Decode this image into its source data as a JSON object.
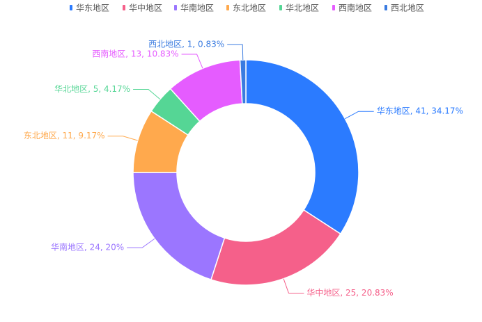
{
  "chart_data": {
    "type": "donut",
    "categories": [
      "华东地区",
      "华中地区",
      "华南地区",
      "东北地区",
      "华北地区",
      "西南地区",
      "西北地区"
    ],
    "values": [
      41,
      25,
      24,
      11,
      5,
      13,
      1
    ],
    "value_labels": [
      "华东地区, 41, 34.17%",
      "华中地区, 25, 20.83%",
      "华南地区, 24, 20%",
      "东北地区, 11, 9.17%",
      "华北地区, 5, 4.17%",
      "西南地区, 13, 10.83%",
      "西北地区, 1, 0.83%"
    ],
    "colors": [
      "#2b7bff",
      "#f5608a",
      "#9b76ff",
      "#ffa94d",
      "#55d695",
      "#e55cff",
      "#3a7be0"
    ],
    "legend": "top"
  }
}
